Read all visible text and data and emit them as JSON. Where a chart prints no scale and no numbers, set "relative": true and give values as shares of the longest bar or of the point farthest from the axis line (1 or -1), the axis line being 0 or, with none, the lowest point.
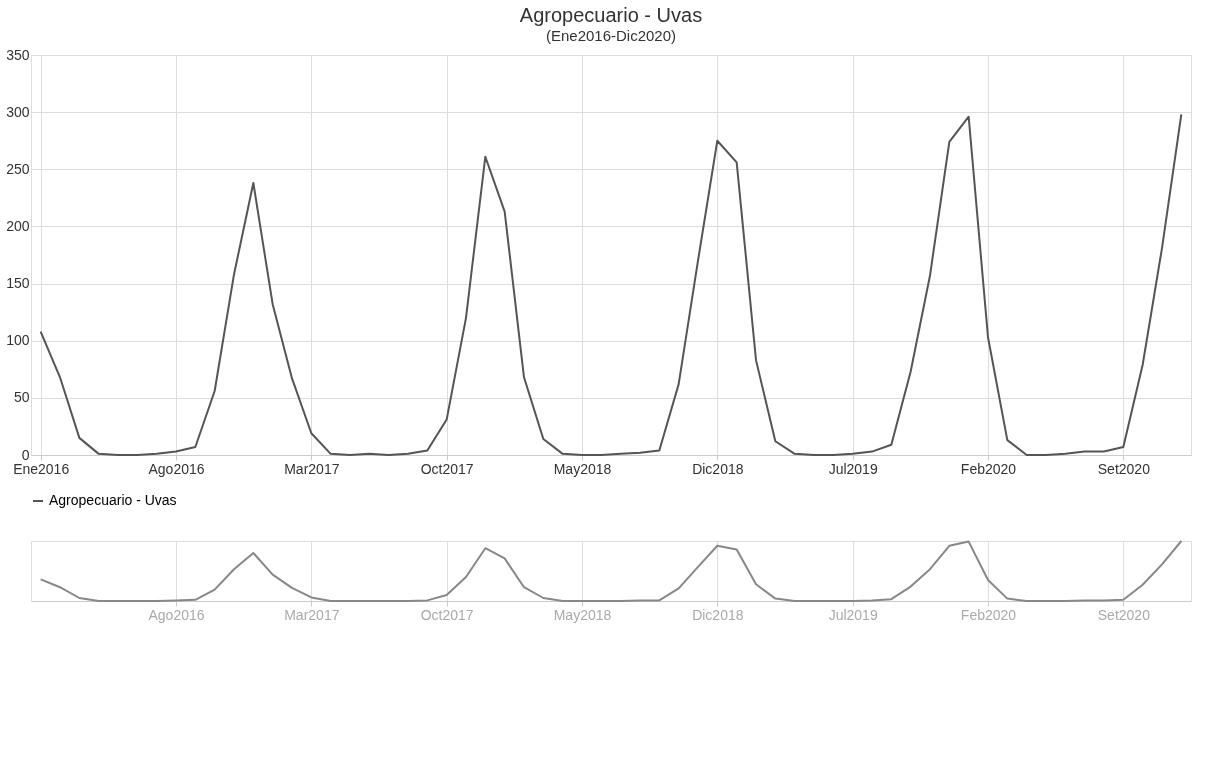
{
  "chart_data": [
    {
      "type": "line",
      "title": "Agropecuario - Uvas",
      "subtitle": "(Ene2016-Dic2020)",
      "categories": [
        "Ene2016",
        null,
        null,
        null,
        null,
        null,
        null,
        "Ago2016",
        null,
        null,
        null,
        null,
        null,
        null,
        "Mar2017",
        null,
        null,
        null,
        null,
        null,
        null,
        "Oct2017",
        null,
        null,
        null,
        null,
        null,
        null,
        "May2018",
        null,
        null,
        null,
        null,
        null,
        null,
        "Dic2018",
        null,
        null,
        null,
        null,
        null,
        null,
        "Jul2019",
        null,
        null,
        null,
        null,
        null,
        null,
        "Feb2020",
        null,
        null,
        null,
        null,
        null,
        null,
        "Set2020",
        null,
        null,
        null
      ],
      "series": [
        {
          "name": "Agropecuario - Uvas",
          "color": "#555555",
          "values": [
            108,
            68,
            15,
            1,
            0,
            0,
            1,
            3,
            7,
            56,
            158,
            238,
            132,
            67,
            19,
            1,
            0,
            1,
            0,
            1,
            4,
            31,
            120,
            261,
            213,
            68,
            14,
            1,
            0,
            0,
            1,
            2,
            4,
            62,
            170,
            275,
            256,
            83,
            12,
            1,
            0,
            0,
            1,
            3,
            9,
            73,
            157,
            274,
            296,
            103,
            13,
            0,
            0,
            1,
            3,
            3,
            7,
            79,
            181,
            298
          ]
        }
      ],
      "ylim": [
        0,
        350
      ],
      "yticks": [
        0,
        50,
        100,
        150,
        200,
        250,
        300,
        350
      ],
      "grid": true,
      "legend": "bottom",
      "marker": "none",
      "line_style": "solid"
    },
    {
      "type": "line",
      "relative": true,
      "tick_labels": "x",
      "categories": [
        null,
        null,
        null,
        null,
        null,
        null,
        null,
        "Ago2016",
        null,
        null,
        null,
        null,
        null,
        null,
        "Mar2017",
        null,
        null,
        null,
        null,
        null,
        null,
        "Oct2017",
        null,
        null,
        null,
        null,
        null,
        null,
        "May2018",
        null,
        null,
        null,
        null,
        null,
        null,
        "Dic2018",
        null,
        null,
        null,
        null,
        null,
        null,
        "Jul2019",
        null,
        null,
        null,
        null,
        null,
        null,
        "Feb2020",
        null,
        null,
        null,
        null,
        null,
        null,
        "Set2020",
        null,
        null,
        null
      ],
      "series": [
        {
          "color": "#888888",
          "values": [
            0.36,
            0.23,
            0.05,
            0,
            0,
            0,
            0,
            0.01,
            0.02,
            0.19,
            0.53,
            0.8,
            0.44,
            0.22,
            0.06,
            0,
            0,
            0,
            0,
            0,
            0.01,
            0.1,
            0.4,
            0.88,
            0.71,
            0.23,
            0.05,
            0,
            0,
            0,
            0,
            0.01,
            0.01,
            0.21,
            0.57,
            0.92,
            0.86,
            0.28,
            0.04,
            0,
            0,
            0,
            0,
            0.01,
            0.03,
            0.24,
            0.53,
            0.92,
            0.99,
            0.35,
            0.04,
            0,
            0,
            0,
            0.01,
            0.01,
            0.02,
            0.27,
            0.61,
            1
          ]
        }
      ],
      "grid": "x",
      "marker": "none",
      "line_style": "solid"
    }
  ]
}
